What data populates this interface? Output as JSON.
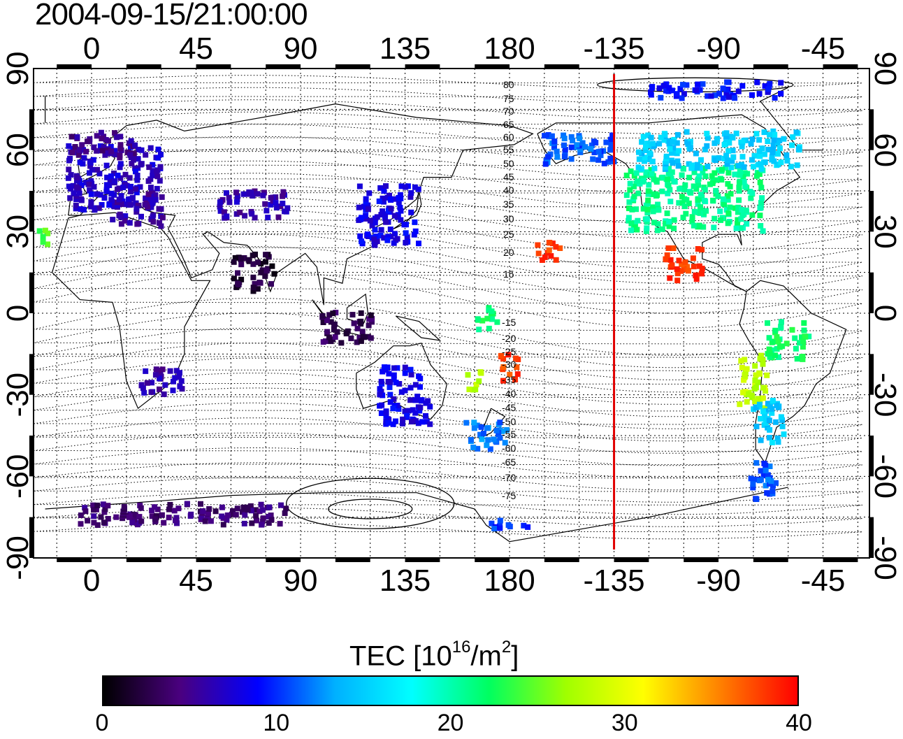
{
  "title": "2004-09-15/21:00:00",
  "colorbar": {
    "label_prefix": "TEC  [10",
    "label_exp1": "16",
    "label_mid": "/m",
    "label_exp2": "2",
    "label_suffix": "]",
    "ticks": [
      "0",
      "10",
      "20",
      "30",
      "40"
    ],
    "range": [
      0,
      40
    ],
    "colors": [
      "#000000",
      "#4a0080",
      "#0000ff",
      "#00b0ff",
      "#00ffff",
      "#00ff60",
      "#a0ff00",
      "#ffff00",
      "#ff8000",
      "#ff0000"
    ]
  },
  "axes": {
    "lon_ticks": [
      "0",
      "45",
      "90",
      "135",
      "180",
      "-135",
      "-90",
      "-45"
    ],
    "lat_ticks": [
      "90",
      "60",
      "30",
      "0",
      "-30",
      "-60",
      "-90"
    ],
    "lon_range": [
      -25,
      335
    ],
    "lat_range": [
      -90,
      90
    ]
  },
  "marker": {
    "longitude": -135,
    "color": "#e00000"
  },
  "contour_labels": {
    "north": [
      "80",
      "75",
      "70",
      "65",
      "60",
      "55",
      "50",
      "45",
      "40",
      "35",
      "30",
      "25",
      "20",
      "15"
    ],
    "south": [
      "-15",
      "-20",
      "-25",
      "-30",
      "-35",
      "-40",
      "-45",
      "-50",
      "-55",
      "-60",
      "-65",
      "-70",
      "-75"
    ]
  },
  "tec_patches": [
    {
      "lon": 10,
      "lat": 50,
      "w": 40,
      "h": 24,
      "tec": 7
    },
    {
      "lon": 20,
      "lat": 38,
      "w": 22,
      "h": 12,
      "tec": 6
    },
    {
      "lon": 5,
      "lat": 62,
      "w": 28,
      "h": 10,
      "tec": 5
    },
    {
      "lon": -20,
      "lat": 28,
      "w": 6,
      "h": 6,
      "tec": 24
    },
    {
      "lon": 70,
      "lat": 40,
      "w": 30,
      "h": 10,
      "tec": 6
    },
    {
      "lon": 70,
      "lat": 15,
      "w": 18,
      "h": 14,
      "tec": 2
    },
    {
      "lon": 110,
      "lat": -5,
      "w": 22,
      "h": 12,
      "tec": 3
    },
    {
      "lon": 128,
      "lat": 36,
      "w": 26,
      "h": 22,
      "tec": 8
    },
    {
      "lon": 30,
      "lat": -25,
      "w": 18,
      "h": 10,
      "tec": 6
    },
    {
      "lon": 135,
      "lat": -30,
      "w": 22,
      "h": 22,
      "tec": 8
    },
    {
      "lon": 170,
      "lat": -45,
      "w": 18,
      "h": 10,
      "tec": 12
    },
    {
      "lon": 180,
      "lat": -20,
      "w": 8,
      "h": 10,
      "tec": 38
    },
    {
      "lon": 165,
      "lat": -25,
      "w": 6,
      "h": 8,
      "tec": 28
    },
    {
      "lon": 170,
      "lat": -2,
      "w": 10,
      "h": 8,
      "tec": 22
    },
    {
      "lon": 197,
      "lat": 22,
      "w": 10,
      "h": 8,
      "tec": 38
    },
    {
      "lon": 210,
      "lat": 60,
      "w": 30,
      "h": 12,
      "tec": 11
    },
    {
      "lon": 260,
      "lat": 42,
      "w": 60,
      "h": 24,
      "tec": 21
    },
    {
      "lon": 270,
      "lat": 60,
      "w": 70,
      "h": 14,
      "tec": 15
    },
    {
      "lon": 255,
      "lat": 18,
      "w": 16,
      "h": 12,
      "tec": 38
    },
    {
      "lon": 285,
      "lat": -25,
      "w": 12,
      "h": 20,
      "tec": 28
    },
    {
      "lon": 300,
      "lat": -10,
      "w": 18,
      "h": 14,
      "tec": 22
    },
    {
      "lon": 292,
      "lat": -40,
      "w": 14,
      "h": 16,
      "tec": 15
    },
    {
      "lon": 290,
      "lat": -62,
      "w": 12,
      "h": 14,
      "tec": 11
    },
    {
      "lon": 270,
      "lat": 82,
      "w": 60,
      "h": 6,
      "tec": 9
    },
    {
      "lon": 40,
      "lat": -74,
      "w": 90,
      "h": 8,
      "tec": 4
    },
    {
      "lon": 180,
      "lat": -78,
      "w": 16,
      "h": 4,
      "tec": 10
    }
  ]
}
